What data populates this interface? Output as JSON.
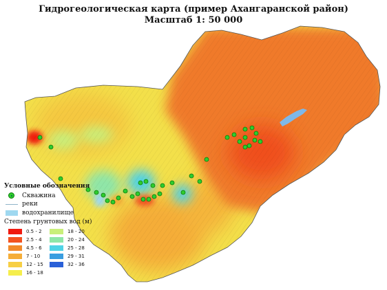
{
  "title_line1": "Гидрогеологическая карта (пример Ахангаранской район)",
  "title_line2": "Масштаб 1: 50 000",
  "legend": {
    "heading": "Условные обозначения",
    "well_label": "Скважина",
    "river_label": "реки",
    "reservoir_label": "водохранилище",
    "depth_heading": "Степень грунтовых вод (м)"
  },
  "depth_classes": [
    {
      "label": "0.5 - 2",
      "color": "#f01a0f"
    },
    {
      "label": "2.5 - 4",
      "color": "#f35320"
    },
    {
      "label": "4.5 - 6",
      "color": "#f28a2a"
    },
    {
      "label": "7 - 10",
      "color": "#f5ad38"
    },
    {
      "label": "12 - 15",
      "color": "#f7cf45"
    },
    {
      "label": "16 - 18",
      "color": "#f5ee4c"
    },
    {
      "label": "18 - 20",
      "color": "#c9ef7a"
    },
    {
      "label": "20 - 24",
      "color": "#8fe6a8"
    },
    {
      "label": "25 - 28",
      "color": "#4fd3e6"
    },
    {
      "label": "29 - 31",
      "color": "#3a9ee0"
    },
    {
      "label": "32 - 36",
      "color": "#2a60d8"
    }
  ],
  "colors": {
    "well": "#2ecc2e",
    "river": "#8fb4c8",
    "reservoir": "#9fd8f0",
    "region_orange": "#f07a2a",
    "region_yellow": "#f3e04a",
    "lake": "#7fb8e8"
  }
}
